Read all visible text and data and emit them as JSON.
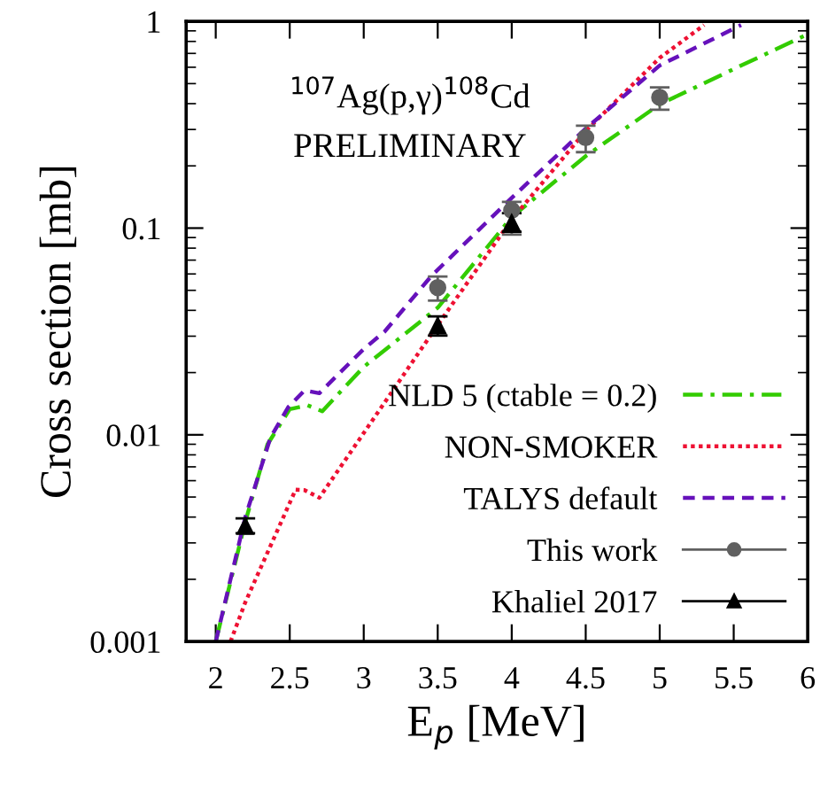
{
  "chart_data": {
    "type": "line",
    "xlabel": "E$_{p}$ [MeV]",
    "ylabel": "Cross section [mb]",
    "log": "y",
    "grid": false,
    "legend": "bottom right",
    "annotations": [
      "$^{107}$Ag(p,γ)$^{108}$Cd",
      "PRELIMINARY"
    ],
    "xlim": [
      1.8,
      6
    ],
    "xticks": [
      2,
      2.5,
      3,
      3.5,
      4,
      4.5,
      5,
      5.5,
      6
    ],
    "ylim": [
      0.001,
      1
    ],
    "yticks": [
      0.001,
      0.01,
      0.1,
      1
    ],
    "series": [
      {
        "name": "NLD 5 (ctable = 0.2)",
        "line_style": "dashdot",
        "color": "#33cc00",
        "x": [
          2.0,
          2.2,
          2.35,
          2.5,
          2.62,
          2.72,
          3.0,
          3.5,
          4.0,
          4.5,
          5.0,
          5.5,
          6.0
        ],
        "values": [
          0.001,
          0.0038,
          0.009,
          0.0133,
          0.0139,
          0.013,
          0.0213,
          0.0412,
          0.113,
          0.223,
          0.397,
          0.588,
          0.866
        ]
      },
      {
        "name": "NON-SMOKER",
        "line_style": "dotted",
        "color": "#ee1133",
        "x": [
          2.1,
          2.2,
          2.54,
          2.6,
          2.7,
          3.0,
          3.5,
          4.0,
          4.5,
          5.0,
          5.3
        ],
        "values": [
          0.001,
          0.00155,
          0.00543,
          0.0054,
          0.00496,
          0.0102,
          0.034,
          0.11,
          0.295,
          0.666,
          0.96
        ]
      },
      {
        "name": "TALYS default",
        "line_style": "dashed",
        "color": "#6611bb",
        "x": [
          2.0,
          2.2,
          2.37,
          2.49,
          2.6,
          2.7,
          3.0,
          3.14,
          3.46,
          4.0,
          4.5,
          5.0,
          5.55
        ],
        "values": [
          0.001,
          0.004,
          0.0097,
          0.0136,
          0.0164,
          0.0159,
          0.026,
          0.0315,
          0.059,
          0.14,
          0.303,
          0.612,
          0.96
        ]
      },
      {
        "name": "This work",
        "type": "scatter",
        "marker": "circle",
        "color": "#606060",
        "x": [
          3.5,
          4.0,
          4.5,
          5.0
        ],
        "values": [
          0.0515,
          0.122,
          0.274,
          0.429
        ],
        "errors": [
          [
            0.0446,
            0.0583
          ],
          [
            0.093,
            0.134
          ],
          [
            0.233,
            0.313
          ],
          [
            0.374,
            0.48
          ]
        ]
      },
      {
        "name": "Khaliel 2017",
        "type": "scatter",
        "marker": "triangle",
        "color": "#000000",
        "x": [
          2.2,
          3.5,
          4.0
        ],
        "values": [
          0.00361,
          0.0337,
          0.106
        ],
        "errors": [
          [
            0.00334,
            0.00394
          ],
          [
            0.0302,
            0.0374
          ],
          [
            0.096,
            0.118
          ]
        ]
      }
    ]
  }
}
